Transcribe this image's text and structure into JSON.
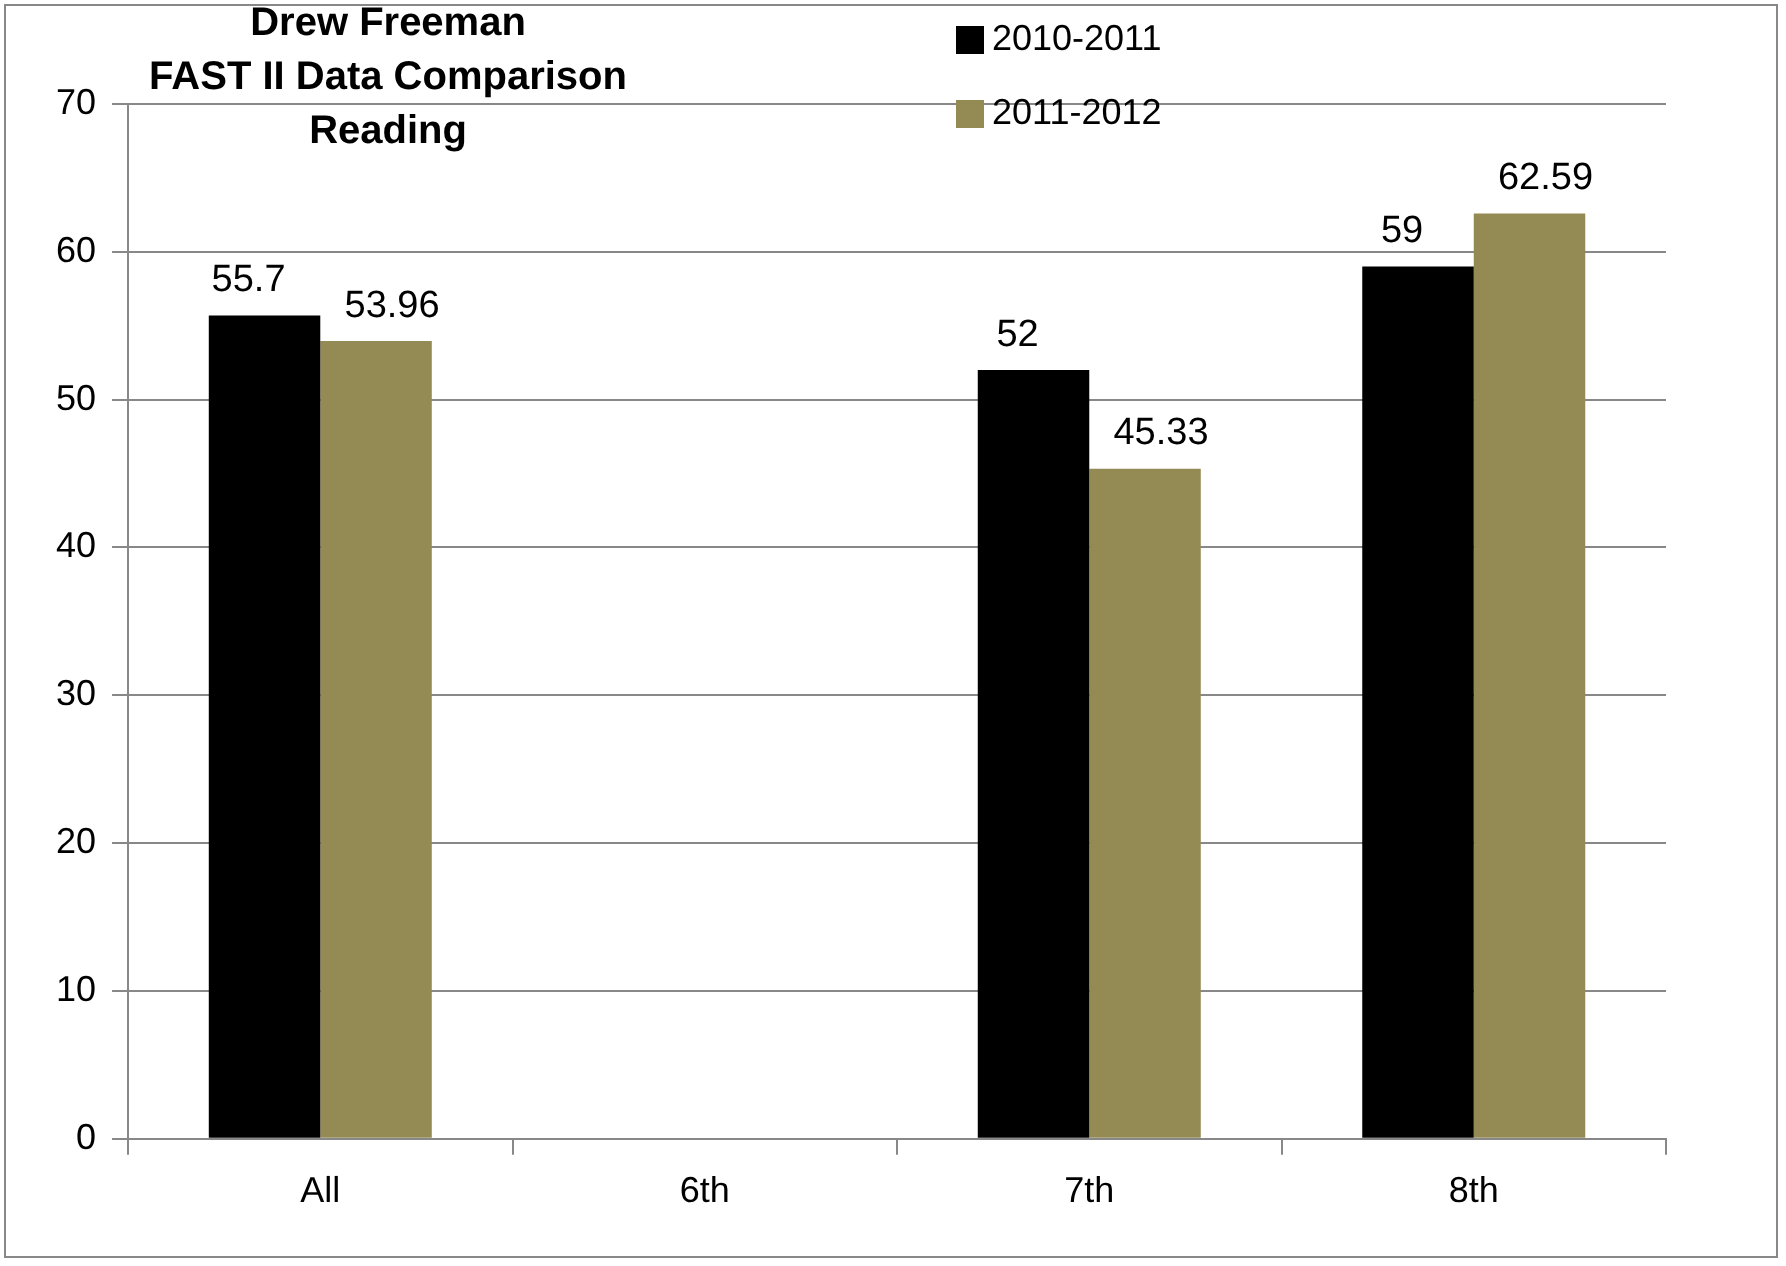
{
  "chart_data": {
    "type": "bar",
    "title": "Drew Freeman\nFAST II Data Comparison\nReading",
    "categories": [
      "All",
      "6th",
      "7th",
      "8th"
    ],
    "series": [
      {
        "name": "2010-2011",
        "color": "#000000",
        "values": [
          55.7,
          null,
          52,
          59
        ]
      },
      {
        "name": "2011-2012",
        "color": "#948a54",
        "values": [
          53.96,
          null,
          45.33,
          62.59
        ]
      }
    ],
    "ylim": [
      0,
      70
    ],
    "yticks": [
      0,
      10,
      20,
      30,
      40,
      50,
      60,
      70
    ],
    "grid": "y",
    "legend": "top right",
    "data_labels": true
  }
}
